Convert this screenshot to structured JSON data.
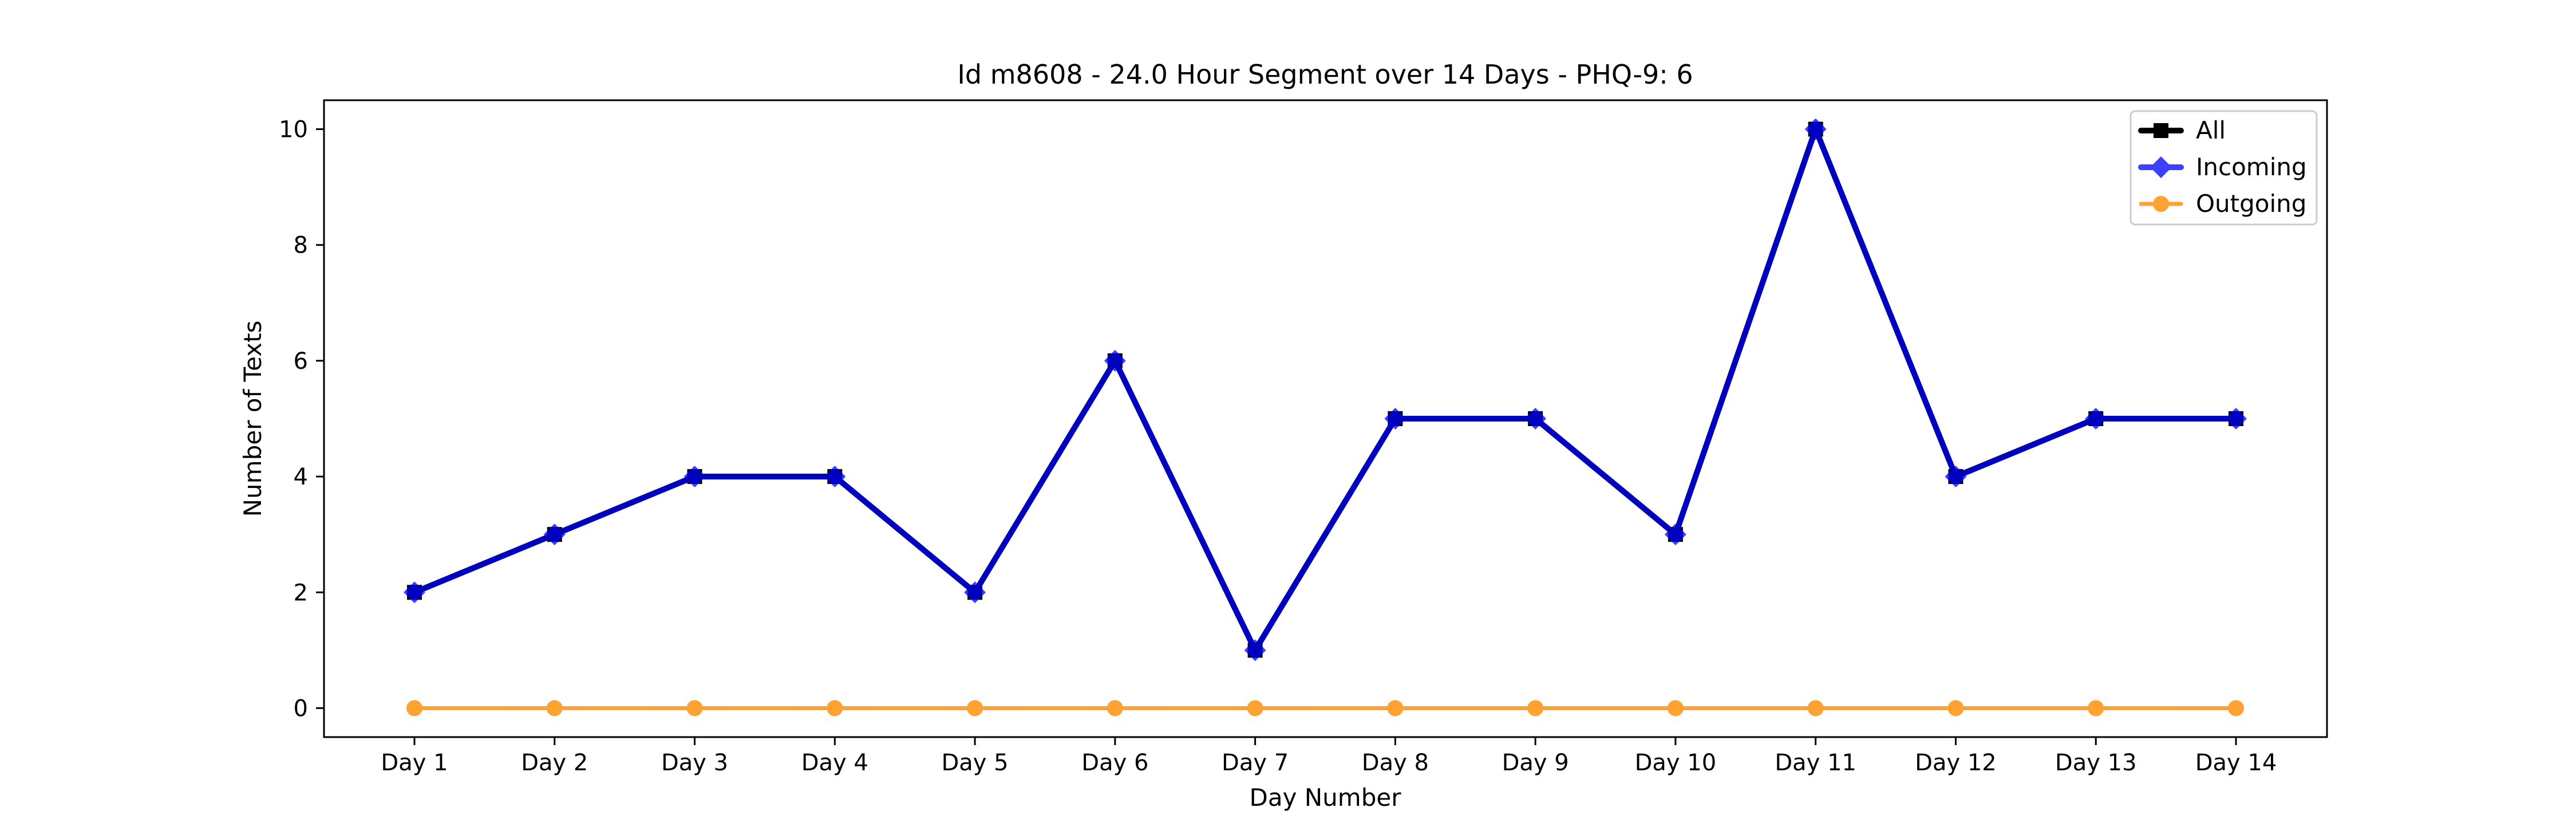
{
  "chart_data": {
    "type": "line",
    "title": "Id m8608 - 24.0 Hour Segment over 14 Days - PHQ-9: 6",
    "xlabel": "Day Number",
    "ylabel": "Number of Texts",
    "categories": [
      "Day 1",
      "Day 2",
      "Day 3",
      "Day 4",
      "Day 5",
      "Day 6",
      "Day 7",
      "Day 8",
      "Day 9",
      "Day 10",
      "Day 11",
      "Day 12",
      "Day 13",
      "Day 14"
    ],
    "ylim": [
      -0.5,
      10.5
    ],
    "yticks": [
      0,
      2,
      4,
      6,
      8,
      10
    ],
    "grid": false,
    "legend_position": "top-right",
    "series": [
      {
        "name": "All",
        "values": [
          2,
          3,
          4,
          4,
          2,
          6,
          1,
          5,
          5,
          3,
          10,
          4,
          5,
          5
        ],
        "color": "#000000",
        "marker": "square"
      },
      {
        "name": "Incoming",
        "values": [
          2,
          3,
          4,
          4,
          2,
          6,
          1,
          5,
          5,
          3,
          10,
          4,
          5,
          5
        ],
        "color": "#0000ff",
        "marker": "diamond"
      },
      {
        "name": "Outgoing",
        "values": [
          0,
          0,
          0,
          0,
          0,
          0,
          0,
          0,
          0,
          0,
          0,
          0,
          0,
          0
        ],
        "color": "#ff8c00",
        "marker": "circle"
      }
    ]
  }
}
